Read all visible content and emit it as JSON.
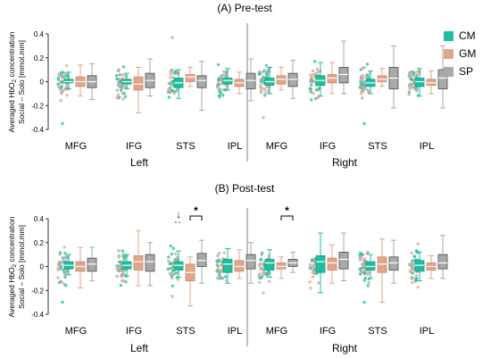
{
  "colors": {
    "CM": "#1fbf9f",
    "GM": "#e0a58a",
    "SP": "#a9a9a9"
  },
  "legend": [
    {
      "key": "CM",
      "label": "CM"
    },
    {
      "key": "GM",
      "label": "GM"
    },
    {
      "key": "SP",
      "label": "SP"
    }
  ],
  "chart_data": [
    {
      "type": "box",
      "title": "(A) Pre-test",
      "ylabel": [
        "Averaged HbO",
        "2",
        " concentration",
        "Social – Solo [mmol.mm]"
      ],
      "ylim": [
        -0.4,
        0.4
      ],
      "yticks": [
        -0.4,
        -0.2,
        0,
        0.2,
        0.4
      ],
      "ytick_labels": [
        "-0.4",
        "-0.2",
        "0",
        "0.2",
        "0.4"
      ],
      "regions": [
        "MFG",
        "IFG",
        "STS",
        "IPL",
        "MFG",
        "IFG",
        "STS",
        "IPL"
      ],
      "hemispheres": [
        "Left",
        "Right"
      ],
      "series": [
        {
          "group": "CM",
          "boxes": [
            {
              "lo": -0.06,
              "q1": -0.01,
              "med": 0.0,
              "q3": 0.02,
              "hi": 0.08
            },
            {
              "lo": -0.06,
              "q1": -0.02,
              "med": 0.0,
              "q3": 0.02,
              "hi": 0.07
            },
            {
              "lo": -0.14,
              "q1": -0.05,
              "med": -0.01,
              "q3": 0.03,
              "hi": 0.1
            },
            {
              "lo": -0.07,
              "q1": -0.02,
              "med": 0.01,
              "q3": 0.03,
              "hi": 0.11
            },
            {
              "lo": -0.1,
              "q1": -0.03,
              "med": 0.0,
              "q3": 0.03,
              "hi": 0.12
            },
            {
              "lo": -0.12,
              "q1": -0.03,
              "med": 0.01,
              "q3": 0.05,
              "hi": 0.16
            },
            {
              "lo": -0.1,
              "q1": -0.04,
              "med": -0.01,
              "q3": 0.02,
              "hi": 0.09
            },
            {
              "lo": -0.12,
              "q1": -0.04,
              "med": 0.0,
              "q3": 0.03,
              "hi": 0.11
            }
          ]
        },
        {
          "group": "GM",
          "boxes": [
            {
              "lo": -0.12,
              "q1": -0.04,
              "med": 0.0,
              "q3": 0.04,
              "hi": 0.14
            },
            {
              "lo": -0.26,
              "q1": -0.07,
              "med": -0.02,
              "q3": 0.04,
              "hi": 0.12
            },
            {
              "lo": -0.04,
              "q1": 0.0,
              "med": 0.04,
              "q3": 0.06,
              "hi": 0.12
            },
            {
              "lo": -0.1,
              "q1": -0.04,
              "med": -0.01,
              "q3": 0.02,
              "hi": 0.08
            },
            {
              "lo": -0.07,
              "q1": -0.02,
              "med": 0.02,
              "q3": 0.05,
              "hi": 0.12
            },
            {
              "lo": -0.1,
              "q1": -0.01,
              "med": 0.03,
              "q3": 0.06,
              "hi": 0.16
            },
            {
              "lo": -0.04,
              "q1": 0.0,
              "med": 0.02,
              "q3": 0.05,
              "hi": 0.11
            },
            {
              "lo": -0.1,
              "q1": -0.03,
              "med": -0.01,
              "q3": 0.02,
              "hi": 0.09
            }
          ]
        },
        {
          "group": "SP",
          "boxes": [
            {
              "lo": -0.15,
              "q1": -0.05,
              "med": 0.0,
              "q3": 0.05,
              "hi": 0.15
            },
            {
              "lo": -0.12,
              "q1": -0.05,
              "med": 0.01,
              "q3": 0.07,
              "hi": 0.19
            },
            {
              "lo": -0.24,
              "q1": -0.05,
              "med": 0.01,
              "q3": 0.05,
              "hi": 0.17
            },
            {
              "lo": -0.16,
              "q1": -0.06,
              "med": 0.01,
              "q3": 0.07,
              "hi": 0.19
            },
            {
              "lo": -0.14,
              "q1": -0.04,
              "med": 0.02,
              "q3": 0.07,
              "hi": 0.18
            },
            {
              "lo": -0.1,
              "q1": -0.01,
              "med": 0.06,
              "q3": 0.12,
              "hi": 0.34
            },
            {
              "lo": -0.22,
              "q1": -0.06,
              "med": 0.03,
              "q3": 0.12,
              "hi": 0.3
            },
            {
              "lo": -0.22,
              "q1": -0.06,
              "med": 0.03,
              "q3": 0.1,
              "hi": 0.3
            }
          ]
        }
      ],
      "scatter_band": 0.18,
      "scatter_outliers": [
        -0.35,
        -0.33,
        0.37,
        0.35,
        -0.3,
        0.28
      ]
    },
    {
      "type": "box",
      "title": "(B) Post-test",
      "ylabel": [
        "Averaged HbO",
        "2",
        " concentration",
        "Social – Solo [mmol.mm]"
      ],
      "ylim": [
        -0.4,
        0.4
      ],
      "yticks": [
        -0.4,
        -0.2,
        0,
        0.2,
        0.4
      ],
      "ytick_labels": [
        "-0.4",
        "-0.2",
        "0",
        "0.2",
        "0.4"
      ],
      "regions": [
        "MFG",
        "IFG",
        "STS",
        "IPL",
        "MFG",
        "IFG",
        "STS",
        "IPL"
      ],
      "hemispheres": [
        "Left",
        "Right"
      ],
      "series": [
        {
          "group": "CM",
          "boxes": [
            {
              "lo": -0.07,
              "q1": -0.02,
              "med": 0.01,
              "q3": 0.04,
              "hi": 0.1
            },
            {
              "lo": -0.08,
              "q1": -0.02,
              "med": 0.01,
              "q3": 0.04,
              "hi": 0.1
            },
            {
              "lo": -0.09,
              "q1": -0.03,
              "med": 0.01,
              "q3": 0.04,
              "hi": 0.13
            },
            {
              "lo": -0.14,
              "q1": -0.05,
              "med": 0.02,
              "q3": 0.06,
              "hi": 0.15
            },
            {
              "lo": -0.09,
              "q1": -0.03,
              "med": 0.03,
              "q3": 0.06,
              "hi": 0.14
            },
            {
              "lo": -0.22,
              "q1": -0.05,
              "med": 0.04,
              "q3": 0.09,
              "hi": 0.28
            },
            {
              "lo": -0.1,
              "q1": -0.03,
              "med": 0.0,
              "q3": 0.04,
              "hi": 0.1
            },
            {
              "lo": -0.12,
              "q1": -0.04,
              "med": 0.01,
              "q3": 0.05,
              "hi": 0.12
            }
          ]
        },
        {
          "group": "GM",
          "boxes": [
            {
              "lo": -0.18,
              "q1": -0.04,
              "med": 0.0,
              "q3": 0.04,
              "hi": 0.16
            },
            {
              "lo": -0.16,
              "q1": -0.03,
              "med": 0.04,
              "q3": 0.09,
              "hi": 0.3
            },
            {
              "lo": -0.33,
              "q1": -0.12,
              "med": -0.05,
              "q3": 0.02,
              "hi": 0.08
            },
            {
              "lo": -0.1,
              "q1": -0.04,
              "med": 0.0,
              "q3": 0.05,
              "hi": 0.14
            },
            {
              "lo": -0.1,
              "q1": -0.02,
              "med": 0.0,
              "q3": 0.03,
              "hi": 0.08
            },
            {
              "lo": -0.14,
              "q1": -0.03,
              "med": 0.03,
              "q3": 0.07,
              "hi": 0.18
            },
            {
              "lo": -0.3,
              "q1": -0.05,
              "med": 0.02,
              "q3": 0.08,
              "hi": 0.23
            },
            {
              "lo": -0.1,
              "q1": -0.03,
              "med": 0.0,
              "q3": 0.03,
              "hi": 0.09
            }
          ]
        },
        {
          "group": "SP",
          "boxes": [
            {
              "lo": -0.12,
              "q1": -0.04,
              "med": 0.02,
              "q3": 0.07,
              "hi": 0.16
            },
            {
              "lo": -0.16,
              "q1": -0.04,
              "med": 0.04,
              "q3": 0.1,
              "hi": 0.2
            },
            {
              "lo": -0.14,
              "q1": 0.0,
              "med": 0.05,
              "q3": 0.11,
              "hi": 0.22
            },
            {
              "lo": -0.14,
              "q1": -0.02,
              "med": 0.05,
              "q3": 0.1,
              "hi": 0.2
            },
            {
              "lo": -0.05,
              "q1": 0.0,
              "med": 0.03,
              "q3": 0.06,
              "hi": 0.12
            },
            {
              "lo": -0.12,
              "q1": -0.02,
              "med": 0.06,
              "q3": 0.12,
              "hi": 0.28
            },
            {
              "lo": -0.14,
              "q1": -0.03,
              "med": 0.03,
              "q3": 0.08,
              "hi": 0.22
            },
            {
              "lo": -0.1,
              "q1": -0.02,
              "med": 0.03,
              "q3": 0.1,
              "hi": 0.26
            }
          ]
        }
      ],
      "scatter_band": 0.2,
      "scatter_outliers": [
        -0.3,
        0.3,
        -0.25,
        0.26,
        -0.22,
        0.24
      ],
      "significance": [
        {
          "region_index": 2,
          "type": "bracket",
          "from": "GM",
          "to": "SP",
          "label": "*"
        },
        {
          "region_index": 2,
          "type": "arrow",
          "at": "CM",
          "label": "↓"
        },
        {
          "region_index": 4,
          "type": "bracket",
          "from": "GM",
          "to": "SP",
          "label": "*"
        }
      ]
    }
  ]
}
